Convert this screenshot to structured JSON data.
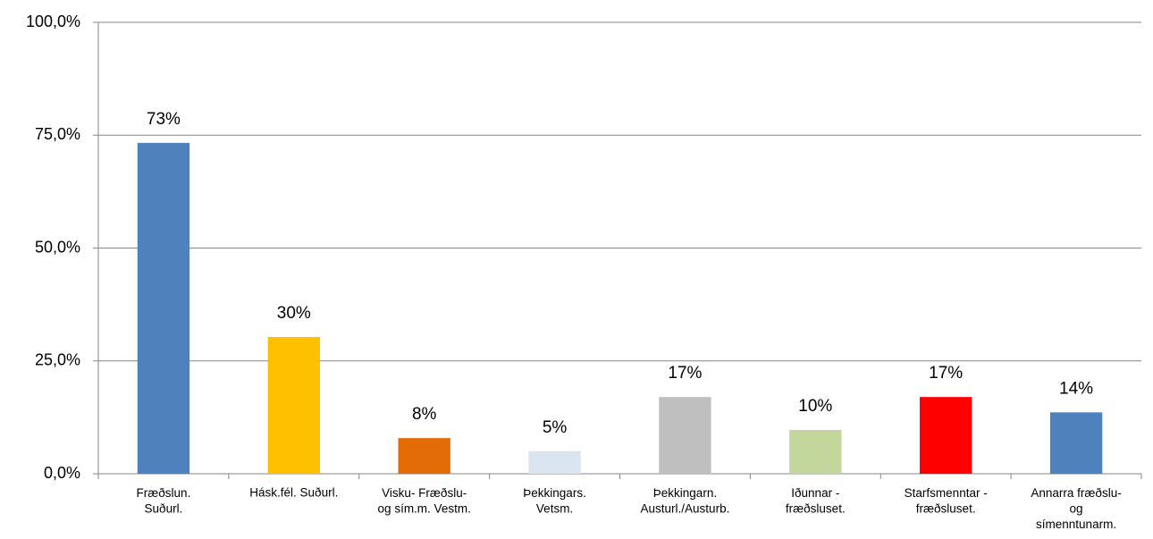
{
  "chart_data": {
    "type": "bar",
    "categories": [
      "Fræðslun.\nSuðurl.",
      "Hásk.fél. Suðurl.",
      "Visku- Fræðslu-\nog sím.m. Vestm.",
      "Þekkingars.\nVetsm.",
      "Þekkingarn.\nAusturl./Austurb.",
      "Iðunnar -\nfræðsluset.",
      "Starfsmenntar -\nfræðsluset.",
      "Annarra fræðslu-\nog\nsímenntunarm."
    ],
    "values": [
      73.3,
      30.3,
      7.9,
      5,
      17,
      9.7,
      17,
      13.6
    ],
    "value_labels": [
      "73%",
      "30%",
      "8%",
      "5%",
      "17%",
      "10%",
      "17%",
      "14%"
    ],
    "colors": [
      "#4f81bd",
      "#ffc000",
      "#e36c09",
      "#dbe5f1",
      "#bfbfbf",
      "#c3d69b",
      "#ff0000",
      "#4f81bd"
    ],
    "ylim": [
      0,
      100
    ],
    "yticks": [
      {
        "value": 0,
        "label": "0,0%"
      },
      {
        "value": 25,
        "label": "25,0%"
      },
      {
        "value": 50,
        "label": "50,0%"
      },
      {
        "value": 75,
        "label": "75,0%"
      },
      {
        "value": 100,
        "label": "100,0%"
      }
    ],
    "grid": true
  }
}
